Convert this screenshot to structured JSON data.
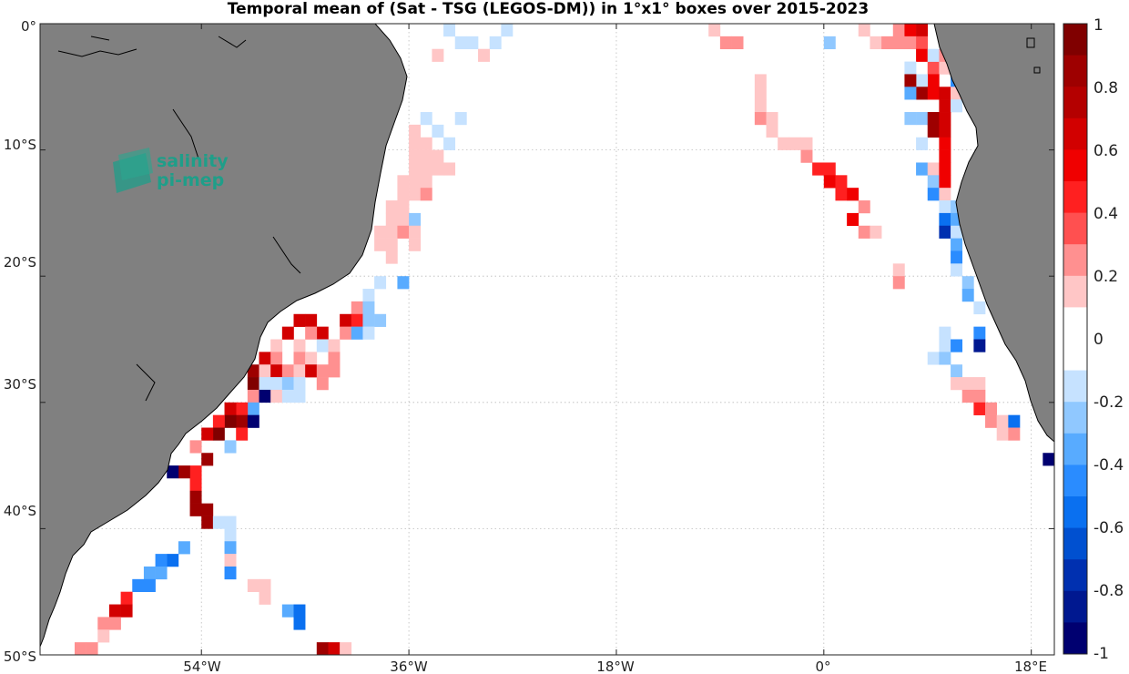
{
  "title": "Temporal mean of (Sat - TSG (LEGOS-DM)) in 1°x1° boxes over 2015-2023",
  "logo": {
    "line1": "salinity",
    "line2": "pi-mep"
  },
  "lat_labels": [
    "0°",
    "10°S",
    "20°S",
    "30°S",
    "40°S",
    "50°S"
  ],
  "lon_labels": [
    "54°W",
    "36°W",
    "18°W",
    "0°",
    "18°E"
  ],
  "colorbar": {
    "labels": [
      "1",
      "0.8",
      "0.6",
      "0.4",
      "0.2",
      "0",
      "-0.2",
      "-0.4",
      "-0.6",
      "-0.8",
      "-1"
    ],
    "colors_top_to_bottom": [
      "#800000",
      "#9e0000",
      "#b40000",
      "#d20000",
      "#f00000",
      "#ff2020",
      "#ff5050",
      "#ff9090",
      "#ffc6c6",
      "#ffffff",
      "#ffffff",
      "#c6e2ff",
      "#90c8ff",
      "#58abff",
      "#2a8cff",
      "#0a70f0",
      "#0050d0",
      "#0030b0",
      "#001890",
      "#000070"
    ]
  },
  "chart_data": {
    "type": "heatmap",
    "title": "Temporal mean of (Sat - TSG (LEGOS-DM)) in 1°x1° boxes over 2015-2023",
    "lon_range": [
      -68,
      20
    ],
    "lat_range": [
      -50,
      0
    ],
    "value_range": [
      -1,
      1
    ],
    "grid": true,
    "legend": "colorbar right",
    "cells": [
      {
        "lon": -32.5,
        "lat": -0.5,
        "v": -0.15
      },
      {
        "lon": -31.5,
        "lat": -1.5,
        "v": -0.1
      },
      {
        "lon": -30.5,
        "lat": -1.5,
        "v": -0.1
      },
      {
        "lon": -28.5,
        "lat": -1.5,
        "v": -0.15
      },
      {
        "lon": -27.5,
        "lat": -0.5,
        "v": -0.1
      },
      {
        "lon": -33.5,
        "lat": -2.5,
        "v": 0.2
      },
      {
        "lon": -29.5,
        "lat": -2.5,
        "v": 0.2
      },
      {
        "lon": -34.5,
        "lat": -7.5,
        "v": -0.15
      },
      {
        "lon": -31.5,
        "lat": -7.5,
        "v": -0.1
      },
      {
        "lon": -35.5,
        "lat": -8.5,
        "v": 0.15
      },
      {
        "lon": -33.5,
        "lat": -8.5,
        "v": -0.1
      },
      {
        "lon": -35.5,
        "lat": -9.5,
        "v": 0.2
      },
      {
        "lon": -34.5,
        "lat": -9.5,
        "v": 0.2
      },
      {
        "lon": -32.5,
        "lat": -9.5,
        "v": -0.1
      },
      {
        "lon": -35.5,
        "lat": -10.5,
        "v": 0.15
      },
      {
        "lon": -34.5,
        "lat": -10.5,
        "v": 0.15
      },
      {
        "lon": -33.5,
        "lat": -10.5,
        "v": 0.15
      },
      {
        "lon": -35.5,
        "lat": -11.5,
        "v": 0.15
      },
      {
        "lon": -34.5,
        "lat": -11.5,
        "v": 0.15
      },
      {
        "lon": -33.5,
        "lat": -11.5,
        "v": 0.15
      },
      {
        "lon": -32.5,
        "lat": -11.5,
        "v": 0.15
      },
      {
        "lon": -36.5,
        "lat": -12.5,
        "v": 0.15
      },
      {
        "lon": -35.5,
        "lat": -12.5,
        "v": 0.15
      },
      {
        "lon": -34.5,
        "lat": -12.5,
        "v": 0.15
      },
      {
        "lon": -36.5,
        "lat": -13.5,
        "v": 0.15
      },
      {
        "lon": -35.5,
        "lat": -13.5,
        "v": 0.15
      },
      {
        "lon": -34.5,
        "lat": -13.5,
        "v": 0.3
      },
      {
        "lon": -37.5,
        "lat": -14.5,
        "v": 0.15
      },
      {
        "lon": -36.5,
        "lat": -14.5,
        "v": 0.15
      },
      {
        "lon": -37.5,
        "lat": -15.5,
        "v": 0.2
      },
      {
        "lon": -36.5,
        "lat": -15.5,
        "v": 0.15
      },
      {
        "lon": -35.5,
        "lat": -15.5,
        "v": -0.2
      },
      {
        "lon": -38.5,
        "lat": -16.5,
        "v": 0.2
      },
      {
        "lon": -37.5,
        "lat": -16.5,
        "v": 0.2
      },
      {
        "lon": -36.5,
        "lat": -16.5,
        "v": 0.3
      },
      {
        "lon": -35.5,
        "lat": -16.5,
        "v": 0.2
      },
      {
        "lon": -38.5,
        "lat": -17.5,
        "v": 0.15
      },
      {
        "lon": -37.5,
        "lat": -17.5,
        "v": 0.2
      },
      {
        "lon": -35.5,
        "lat": -17.5,
        "v": 0.15
      },
      {
        "lon": -37.5,
        "lat": -18.5,
        "v": 0.2
      },
      {
        "lon": -38.5,
        "lat": -20.5,
        "v": -0.15
      },
      {
        "lon": -39.5,
        "lat": -21.5,
        "v": -0.1
      },
      {
        "lon": -36.5,
        "lat": -20.5,
        "v": -0.3
      },
      {
        "lon": -40.5,
        "lat": -22.5,
        "v": 0.25
      },
      {
        "lon": -39.5,
        "lat": -22.5,
        "v": -0.2
      },
      {
        "lon": -41.5,
        "lat": -23.5,
        "v": 0.7
      },
      {
        "lon": -40.5,
        "lat": -23.5,
        "v": 0.5
      },
      {
        "lon": -39.5,
        "lat": -23.5,
        "v": -0.2
      },
      {
        "lon": -38.5,
        "lat": -23.5,
        "v": -0.2
      },
      {
        "lon": -44.5,
        "lat": -23.5,
        "v": 0.7
      },
      {
        "lon": -45.5,
        "lat": -23.5,
        "v": 0.7
      },
      {
        "lon": -43.5,
        "lat": -24.5,
        "v": 0.7
      },
      {
        "lon": -44.5,
        "lat": -24.5,
        "v": 0.25
      },
      {
        "lon": -46.5,
        "lat": -24.5,
        "v": 0.7
      },
      {
        "lon": -41.5,
        "lat": -24.5,
        "v": 0.3
      },
      {
        "lon": -40.5,
        "lat": -24.5,
        "v": -0.3
      },
      {
        "lon": -39.5,
        "lat": -24.5,
        "v": -0.15
      },
      {
        "lon": -47.5,
        "lat": -25.5,
        "v": 0.2
      },
      {
        "lon": -45.5,
        "lat": -25.5,
        "v": 0.15
      },
      {
        "lon": -43.5,
        "lat": -25.5,
        "v": -0.15
      },
      {
        "lon": -42.5,
        "lat": -25.5,
        "v": 0.2
      },
      {
        "lon": -48.5,
        "lat": -26.5,
        "v": 0.7
      },
      {
        "lon": -47.5,
        "lat": -26.5,
        "v": 0.3
      },
      {
        "lon": -45.5,
        "lat": -26.5,
        "v": 0.25
      },
      {
        "lon": -44.5,
        "lat": -26.5,
        "v": 0.2
      },
      {
        "lon": -42.5,
        "lat": -26.5,
        "v": 0.25
      },
      {
        "lon": -49.5,
        "lat": -27.5,
        "v": 0.85
      },
      {
        "lon": -48.5,
        "lat": -27.5,
        "v": 0.2
      },
      {
        "lon": -47.5,
        "lat": -27.5,
        "v": 0.7
      },
      {
        "lon": -46.5,
        "lat": -27.5,
        "v": 0.3
      },
      {
        "lon": -45.5,
        "lat": -27.5,
        "v": 0.2
      },
      {
        "lon": -44.5,
        "lat": -27.5,
        "v": 0.7
      },
      {
        "lon": -43.5,
        "lat": -27.5,
        "v": 0.3
      },
      {
        "lon": -42.5,
        "lat": -27.5,
        "v": 0.25
      },
      {
        "lon": -49.5,
        "lat": -28.5,
        "v": 0.9
      },
      {
        "lon": -48.5,
        "lat": -28.5,
        "v": -0.15
      },
      {
        "lon": -47.5,
        "lat": -28.5,
        "v": -0.15
      },
      {
        "lon": -46.5,
        "lat": -28.5,
        "v": -0.2
      },
      {
        "lon": -45.5,
        "lat": -28.5,
        "v": -0.15
      },
      {
        "lon": -43.5,
        "lat": -28.5,
        "v": 0.25
      },
      {
        "lon": -49.5,
        "lat": -29.5,
        "v": 0.3
      },
      {
        "lon": -48.5,
        "lat": -29.5,
        "v": -0.9
      },
      {
        "lon": -47.5,
        "lat": -29.5,
        "v": 0.2
      },
      {
        "lon": -46.5,
        "lat": -29.5,
        "v": -0.15
      },
      {
        "lon": -45.5,
        "lat": -29.5,
        "v": -0.15
      },
      {
        "lon": -49.5,
        "lat": -30.5,
        "v": -0.3
      },
      {
        "lon": -50.5,
        "lat": -30.5,
        "v": 0.5
      },
      {
        "lon": -51.5,
        "lat": -30.5,
        "v": 0.7
      },
      {
        "lon": -50.5,
        "lat": -31.5,
        "v": 0.85
      },
      {
        "lon": -51.5,
        "lat": -31.5,
        "v": 0.9
      },
      {
        "lon": -52.5,
        "lat": -31.5,
        "v": 0.5
      },
      {
        "lon": -49.5,
        "lat": -31.5,
        "v": -1.0
      },
      {
        "lon": -50.5,
        "lat": -32.5,
        "v": 0.5
      },
      {
        "lon": -52.5,
        "lat": -32.5,
        "v": 0.9
      },
      {
        "lon": -53.5,
        "lat": -32.5,
        "v": 0.7
      },
      {
        "lon": -51.5,
        "lat": -33.5,
        "v": -0.2
      },
      {
        "lon": -53.5,
        "lat": -34.5,
        "v": 0.85
      },
      {
        "lon": -54.5,
        "lat": -33.5,
        "v": 0.3
      },
      {
        "lon": -54.5,
        "lat": -35.5,
        "v": 0.5
      },
      {
        "lon": -55.5,
        "lat": -35.5,
        "v": 0.85
      },
      {
        "lon": -56.5,
        "lat": -35.5,
        "v": -1.0
      },
      {
        "lon": -54.5,
        "lat": -36.5,
        "v": 0.5
      },
      {
        "lon": -54.5,
        "lat": -37.5,
        "v": 0.85
      },
      {
        "lon": -54.5,
        "lat": -38.5,
        "v": 0.85
      },
      {
        "lon": -53.5,
        "lat": -38.5,
        "v": 0.85
      },
      {
        "lon": -53.5,
        "lat": -39.5,
        "v": 0.85
      },
      {
        "lon": -52.5,
        "lat": -39.5,
        "v": -0.15
      },
      {
        "lon": -51.5,
        "lat": -39.5,
        "v": -0.15
      },
      {
        "lon": -51.5,
        "lat": -40.5,
        "v": -0.15
      },
      {
        "lon": -51.5,
        "lat": -41.5,
        "v": -0.3
      },
      {
        "lon": -51.5,
        "lat": -42.5,
        "v": 0.2
      },
      {
        "lon": -51.5,
        "lat": -43.5,
        "v": -0.4
      },
      {
        "lon": -55.5,
        "lat": -41.5,
        "v": -0.3
      },
      {
        "lon": -56.5,
        "lat": -42.5,
        "v": -0.5
      },
      {
        "lon": -57.5,
        "lat": -42.5,
        "v": -0.4
      },
      {
        "lon": -57.5,
        "lat": -43.5,
        "v": -0.3
      },
      {
        "lon": -58.5,
        "lat": -43.5,
        "v": -0.3
      },
      {
        "lon": -58.5,
        "lat": -44.5,
        "v": -0.4
      },
      {
        "lon": -59.5,
        "lat": -44.5,
        "v": -0.4
      },
      {
        "lon": -49.5,
        "lat": -44.5,
        "v": 0.15
      },
      {
        "lon": -48.5,
        "lat": -44.5,
        "v": 0.15
      },
      {
        "lon": -48.5,
        "lat": -45.5,
        "v": 0.15
      },
      {
        "lon": -60.5,
        "lat": -45.5,
        "v": 0.5
      },
      {
        "lon": -61.5,
        "lat": -46.5,
        "v": 0.7
      },
      {
        "lon": -60.5,
        "lat": -46.5,
        "v": 0.7
      },
      {
        "lon": -62.5,
        "lat": -47.5,
        "v": 0.3
      },
      {
        "lon": -61.5,
        "lat": -47.5,
        "v": 0.25
      },
      {
        "lon": -62.5,
        "lat": -48.5,
        "v": 0.2
      },
      {
        "lon": -64.5,
        "lat": -49.5,
        "v": 0.3
      },
      {
        "lon": -63.5,
        "lat": -49.5,
        "v": 0.3
      },
      {
        "lon": -46.5,
        "lat": -46.5,
        "v": -0.3
      },
      {
        "lon": -45.5,
        "lat": -46.5,
        "v": -0.5
      },
      {
        "lon": -45.5,
        "lat": -47.5,
        "v": -0.5
      },
      {
        "lon": -43.5,
        "lat": -49.5,
        "v": 0.85
      },
      {
        "lon": -42.5,
        "lat": -49.5,
        "v": 0.7
      },
      {
        "lon": -41.5,
        "lat": -49.5,
        "v": 0.15
      },
      {
        "lon": -9.5,
        "lat": -0.5,
        "v": 0.2
      },
      {
        "lon": -8.5,
        "lat": -1.5,
        "v": 0.3
      },
      {
        "lon": -7.5,
        "lat": -1.5,
        "v": 0.3
      },
      {
        "lon": -5.5,
        "lat": -4.5,
        "v": 0.2
      },
      {
        "lon": 0.5,
        "lat": -1.5,
        "v": -0.2
      },
      {
        "lon": 3.5,
        "lat": -0.5,
        "v": 0.2
      },
      {
        "lon": 4.5,
        "lat": -1.5,
        "v": 0.2
      },
      {
        "lon": 5.5,
        "lat": -1.5,
        "v": 0.3
      },
      {
        "lon": 6.5,
        "lat": -0.5,
        "v": 0.3
      },
      {
        "lon": 7.5,
        "lat": -0.5,
        "v": 0.6
      },
      {
        "lon": 8.5,
        "lat": -0.5,
        "v": 0.7
      },
      {
        "lon": 6.5,
        "lat": -1.5,
        "v": 0.3
      },
      {
        "lon": 7.5,
        "lat": -1.5,
        "v": 0.3
      },
      {
        "lon": 8.5,
        "lat": -1.5,
        "v": 0.4
      },
      {
        "lon": 8.5,
        "lat": -2.5,
        "v": 0.6
      },
      {
        "lon": 9.5,
        "lat": -3.5,
        "v": 0.4
      },
      {
        "lon": 10.5,
        "lat": -3.5,
        "v": 0.2
      },
      {
        "lon": 11.5,
        "lat": -4.5,
        "v": -0.4
      },
      {
        "lon": 12.5,
        "lat": -4.5,
        "v": -1.0
      },
      {
        "lon": 9.5,
        "lat": -4.5,
        "v": 0.6
      },
      {
        "lon": 8.5,
        "lat": -4.5,
        "v": -0.15
      },
      {
        "lon": 7.5,
        "lat": -3.5,
        "v": -0.15
      },
      {
        "lon": 7.5,
        "lat": -4.5,
        "v": 0.85
      },
      {
        "lon": 8.5,
        "lat": -5.5,
        "v": 0.85
      },
      {
        "lon": 9.5,
        "lat": -5.5,
        "v": 0.6
      },
      {
        "lon": 10.5,
        "lat": -5.5,
        "v": 0.7
      },
      {
        "lon": 11.5,
        "lat": -5.5,
        "v": 0.2
      },
      {
        "lon": 10.5,
        "lat": -6.5,
        "v": 0.7
      },
      {
        "lon": 11.5,
        "lat": -6.5,
        "v": -0.15
      },
      {
        "lon": 7.5,
        "lat": -5.5,
        "v": -0.3
      },
      {
        "lon": -5.5,
        "lat": -5.5,
        "v": 0.2
      },
      {
        "lon": -5.5,
        "lat": -6.5,
        "v": 0.2
      },
      {
        "lon": -5.5,
        "lat": -7.5,
        "v": 0.3
      },
      {
        "lon": -4.5,
        "lat": -7.5,
        "v": 0.2
      },
      {
        "lon": -4.5,
        "lat": -8.5,
        "v": 0.2
      },
      {
        "lon": -3.5,
        "lat": -9.5,
        "v": 0.2
      },
      {
        "lon": -2.5,
        "lat": -9.5,
        "v": 0.2
      },
      {
        "lon": -1.5,
        "lat": -9.5,
        "v": 0.2
      },
      {
        "lon": -1.5,
        "lat": -10.5,
        "v": 0.3
      },
      {
        "lon": -0.5,
        "lat": -11.5,
        "v": 0.5
      },
      {
        "lon": 0.5,
        "lat": -11.5,
        "v": 0.5
      },
      {
        "lon": 0.5,
        "lat": -12.5,
        "v": 0.6
      },
      {
        "lon": 1.5,
        "lat": -12.5,
        "v": 0.5
      },
      {
        "lon": 1.5,
        "lat": -13.5,
        "v": 0.5
      },
      {
        "lon": 2.5,
        "lat": -13.5,
        "v": 0.6
      },
      {
        "lon": 3.5,
        "lat": -14.5,
        "v": 0.3
      },
      {
        "lon": 2.5,
        "lat": -15.5,
        "v": 0.6
      },
      {
        "lon": 3.5,
        "lat": -16.5,
        "v": 0.3
      },
      {
        "lon": 4.5,
        "lat": -16.5,
        "v": 0.2
      },
      {
        "lon": 7.5,
        "lat": -7.5,
        "v": -0.2
      },
      {
        "lon": 8.5,
        "lat": -7.5,
        "v": -0.2
      },
      {
        "lon": 9.5,
        "lat": -7.5,
        "v": 0.8
      },
      {
        "lon": 10.5,
        "lat": -7.5,
        "v": 0.7
      },
      {
        "lon": 9.5,
        "lat": -8.5,
        "v": 0.8
      },
      {
        "lon": 10.5,
        "lat": -8.5,
        "v": 0.7
      },
      {
        "lon": 8.5,
        "lat": -9.5,
        "v": -0.15
      },
      {
        "lon": 10.5,
        "lat": -9.5,
        "v": 0.6
      },
      {
        "lon": 10.5,
        "lat": -10.5,
        "v": 0.6
      },
      {
        "lon": 8.5,
        "lat": -11.5,
        "v": -0.3
      },
      {
        "lon": 9.5,
        "lat": -11.5,
        "v": 0.2
      },
      {
        "lon": 10.5,
        "lat": -11.5,
        "v": 0.6
      },
      {
        "lon": 9.5,
        "lat": -12.5,
        "v": -0.2
      },
      {
        "lon": 10.5,
        "lat": -12.5,
        "v": 0.6
      },
      {
        "lon": 9.5,
        "lat": -13.5,
        "v": -0.4
      },
      {
        "lon": 10.5,
        "lat": -13.5,
        "v": 0.2
      },
      {
        "lon": 10.5,
        "lat": -14.5,
        "v": -0.15
      },
      {
        "lon": 11.5,
        "lat": -14.5,
        "v": -0.2
      },
      {
        "lon": 10.5,
        "lat": -15.5,
        "v": -0.5
      },
      {
        "lon": 11.5,
        "lat": -15.5,
        "v": -0.3
      },
      {
        "lon": 10.5,
        "lat": -16.5,
        "v": -0.7
      },
      {
        "lon": 11.5,
        "lat": -16.5,
        "v": -0.15
      },
      {
        "lon": 11.5,
        "lat": -17.5,
        "v": -0.3
      },
      {
        "lon": 11.5,
        "lat": -18.5,
        "v": -0.4
      },
      {
        "lon": 11.5,
        "lat": -19.5,
        "v": -0.15
      },
      {
        "lon": 12.5,
        "lat": -20.5,
        "v": -0.2
      },
      {
        "lon": 12.5,
        "lat": -21.5,
        "v": -0.3
      },
      {
        "lon": 13.5,
        "lat": -22.5,
        "v": -0.15
      },
      {
        "lon": 6.5,
        "lat": -19.5,
        "v": 0.2
      },
      {
        "lon": 6.5,
        "lat": -20.5,
        "v": 0.3
      },
      {
        "lon": 10.5,
        "lat": -24.5,
        "v": -0.15
      },
      {
        "lon": 10.5,
        "lat": -25.5,
        "v": -0.15
      },
      {
        "lon": 9.5,
        "lat": -26.5,
        "v": -0.15
      },
      {
        "lon": 11.5,
        "lat": -25.5,
        "v": -0.4
      },
      {
        "lon": 13.5,
        "lat": -24.5,
        "v": -0.4
      },
      {
        "lon": 13.5,
        "lat": -25.5,
        "v": -0.8
      },
      {
        "lon": 10.5,
        "lat": -26.5,
        "v": -0.2
      },
      {
        "lon": 11.5,
        "lat": -27.5,
        "v": -0.2
      },
      {
        "lon": 12.5,
        "lat": -28.5,
        "v": 0.2
      },
      {
        "lon": 13.5,
        "lat": -28.5,
        "v": 0.2
      },
      {
        "lon": 11.5,
        "lat": -28.5,
        "v": 0.2
      },
      {
        "lon": 12.5,
        "lat": -29.5,
        "v": 0.3
      },
      {
        "lon": 13.5,
        "lat": -29.5,
        "v": 0.3
      },
      {
        "lon": 13.5,
        "lat": -30.5,
        "v": 0.5
      },
      {
        "lon": 14.5,
        "lat": -30.5,
        "v": 0.3
      },
      {
        "lon": 14.5,
        "lat": -31.5,
        "v": 0.3
      },
      {
        "lon": 15.5,
        "lat": -31.5,
        "v": 0.2
      },
      {
        "lon": 16.5,
        "lat": -31.5,
        "v": -0.5
      },
      {
        "lon": 15.5,
        "lat": -32.5,
        "v": 0.2
      },
      {
        "lon": 16.5,
        "lat": -32.5,
        "v": 0.3
      },
      {
        "lon": 19.5,
        "lat": -34.5,
        "v": -1.0
      },
      {
        "lon": 9.5,
        "lat": -2.5,
        "v": -0.15
      },
      {
        "lon": 10.5,
        "lat": -2.5,
        "v": 0.3
      },
      {
        "lon": 11.5,
        "lat": -3.5,
        "v": -0.3
      }
    ]
  }
}
